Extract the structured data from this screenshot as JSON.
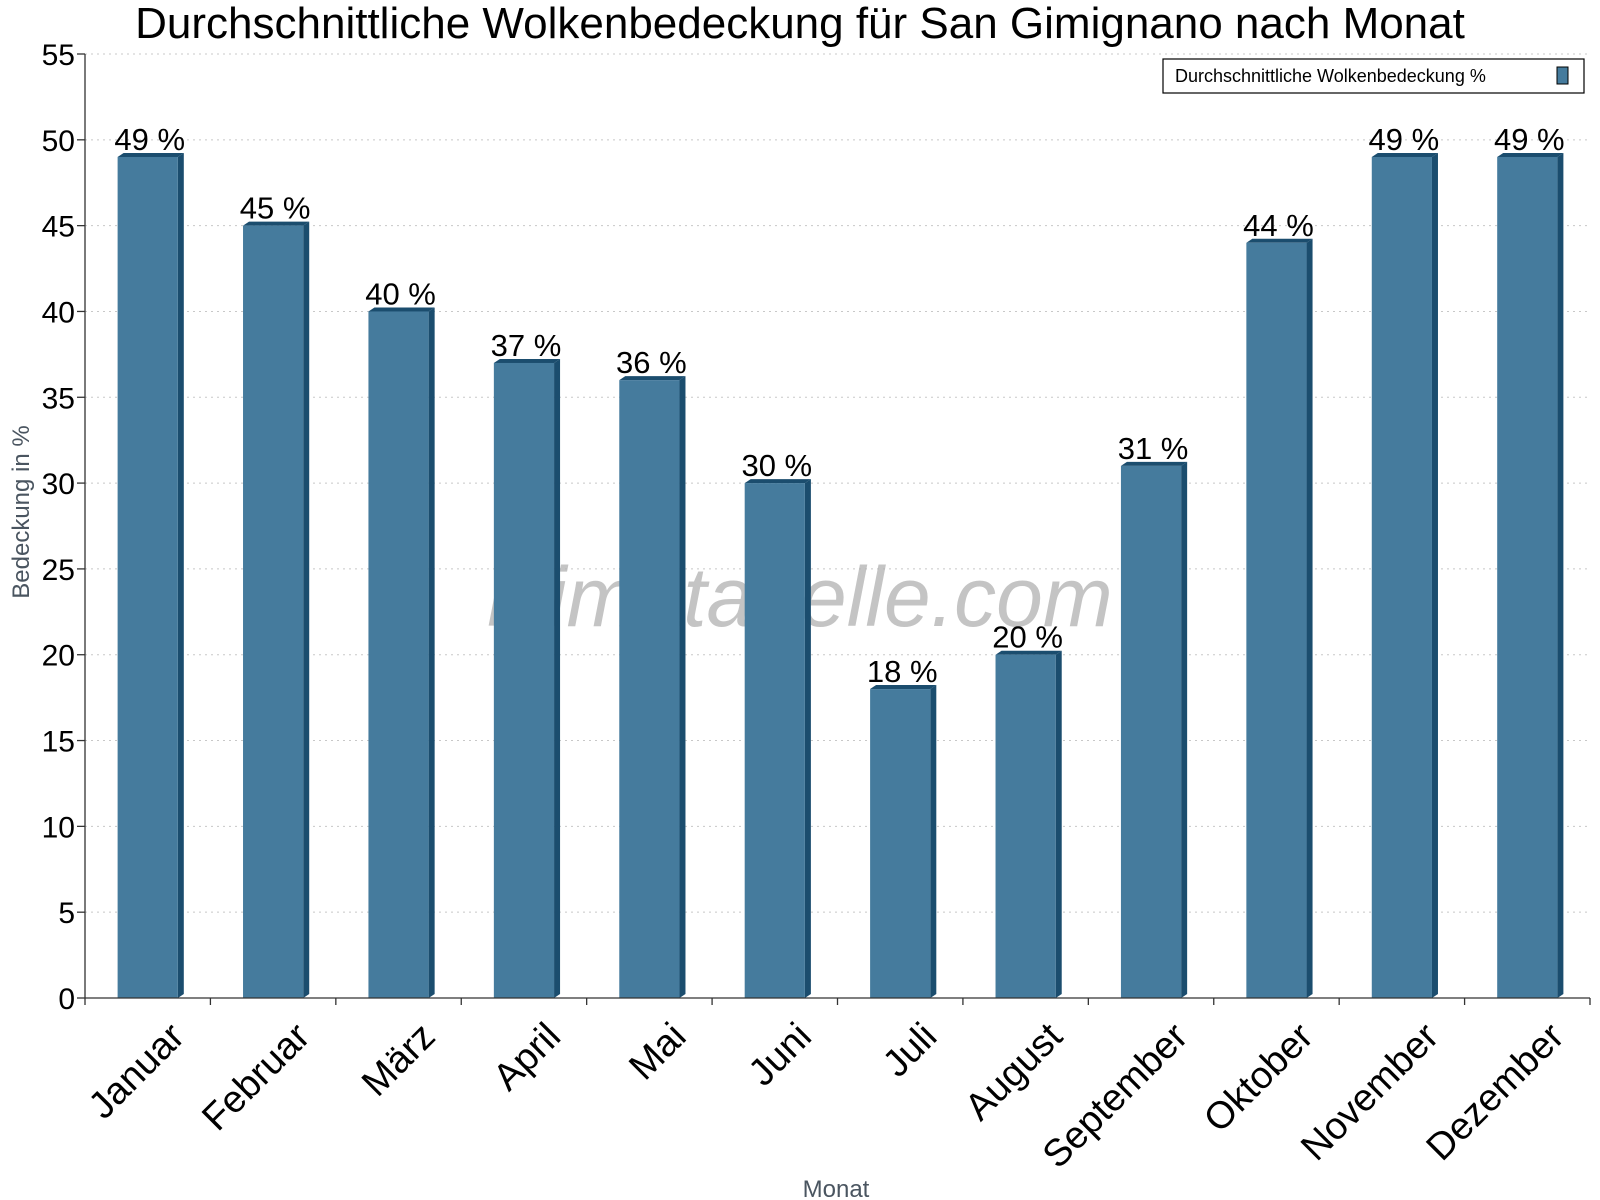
{
  "chart_data": {
    "type": "bar",
    "title": "Durchschnittliche Wolkenbedeckung für San Gimignano nach Monat",
    "xlabel": "Monat",
    "ylabel": "Bedeckung in %",
    "categories": [
      "Januar",
      "Februar",
      "März",
      "April",
      "Mai",
      "Juni",
      "Juli",
      "August",
      "September",
      "Oktober",
      "November",
      "Dezember"
    ],
    "series": [
      {
        "name": "Durchschnittliche Wolkenbedeckung %",
        "values": [
          49,
          45,
          40,
          37,
          36,
          30,
          18,
          20,
          31,
          44,
          49,
          49
        ],
        "labels": [
          "49 %",
          "45 %",
          "40 %",
          "37 %",
          "36 %",
          "30 %",
          "18 %",
          "20 %",
          "31 %",
          "44 %",
          "49 %",
          "49 %"
        ],
        "color": "#457b9d",
        "side_color": "#1b4d6e"
      }
    ],
    "ylim": [
      0,
      55
    ],
    "yticks": [
      0,
      5,
      10,
      15,
      20,
      25,
      30,
      35,
      40,
      45,
      50,
      55
    ],
    "grid": true,
    "legend": "top-right",
    "watermark": "klimatabelle.com"
  }
}
